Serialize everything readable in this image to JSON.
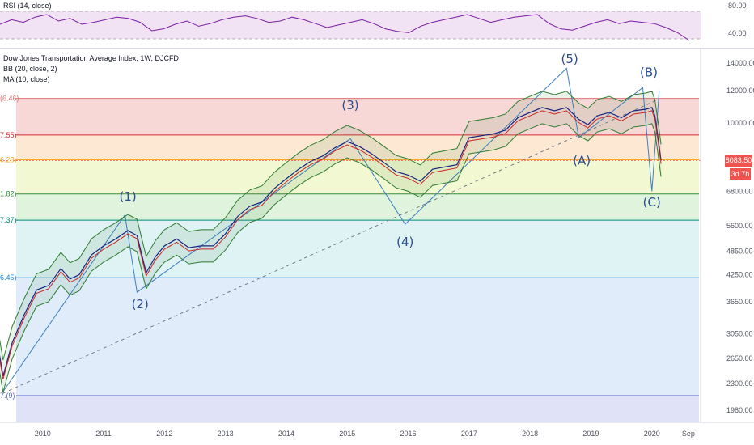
{
  "rsi": {
    "label": "RSI (14, close)",
    "y_ticks": [
      "80.00",
      "40.00"
    ],
    "color": "#7b1fa2",
    "band_color": "#e1bee7"
  },
  "chart_data": {
    "type": "line",
    "title": "Dow Jones Transportation Average Index, 1W, DJCFD",
    "indicators": [
      "BB (20, close, 2)",
      "MA (10, close)"
    ],
    "x_ticks": [
      "2010",
      "2011",
      "2012",
      "2013",
      "2014",
      "2015",
      "2016",
      "2017",
      "2018",
      "2019",
      "2020",
      "Sep"
    ],
    "y_ticks": [
      14000,
      12000,
      10000,
      8000,
      6800,
      5600,
      4850,
      4250,
      3650,
      3050,
      2650,
      2300,
      1980
    ],
    "y_scale": "log",
    "y_range": [
      1850,
      15200
    ],
    "last_price": "8083.50",
    "countdown": "3d 7h",
    "fib_labels": [
      {
        "label": "(6.46)",
        "value": 11480,
        "color": "#e57373"
      },
      {
        "label": "7.55)",
        "value": 9340,
        "color": "#d32f2f"
      },
      {
        "label": "6.28)",
        "value": 8120,
        "color": "#f9a825"
      },
      {
        "label": "1.82)",
        "value": 6700,
        "color": "#388e3c"
      },
      {
        "label": "7.37)",
        "value": 5780,
        "color": "#00897b"
      },
      {
        "label": "6.45)",
        "value": 4180,
        "color": "#1e88e5"
      },
      {
        "label": "7.(9)",
        "value": 2150,
        "color": "#5c6bc0"
      }
    ],
    "wave_labels": [
      {
        "label": "(1)",
        "x": 2011.4,
        "y": 6450
      },
      {
        "label": "(2)",
        "x": 2011.6,
        "y": 3520
      },
      {
        "label": "(3)",
        "x": 2015.05,
        "y": 10800
      },
      {
        "label": "(4)",
        "x": 2015.95,
        "y": 5000
      },
      {
        "label": "(5)",
        "x": 2018.65,
        "y": 14000
      },
      {
        "label": "(A)",
        "x": 2018.85,
        "y": 7900
      },
      {
        "label": "(B)",
        "x": 2019.95,
        "y": 13000
      },
      {
        "label": "(C)",
        "x": 2020.0,
        "y": 6250
      }
    ],
    "price_series": {
      "name": "",
      "x": [
        2009.25,
        2009.35,
        2009.5,
        2009.7,
        2009.9,
        2010.1,
        2010.3,
        2010.45,
        2010.6,
        2010.8,
        2011.0,
        2011.2,
        2011.4,
        2011.55,
        2011.7,
        2011.85,
        2012.0,
        2012.2,
        2012.4,
        2012.6,
        2012.8,
        2013.0,
        2013.2,
        2013.4,
        2013.6,
        2013.8,
        2014.0,
        2014.2,
        2014.4,
        2014.6,
        2014.8,
        2015.0,
        2015.2,
        2015.4,
        2015.6,
        2015.8,
        2016.0,
        2016.2,
        2016.4,
        2016.6,
        2016.8,
        2017.0,
        2017.2,
        2017.4,
        2017.6,
        2017.8,
        2018.0,
        2018.2,
        2018.4,
        2018.6,
        2018.8,
        2018.95,
        2019.1,
        2019.3,
        2019.5,
        2019.7,
        2019.9,
        2020.0,
        2020.05,
        2020.1,
        2020.15
      ],
      "y": [
        2950,
        2400,
        2900,
        3400,
        3900,
        4000,
        4400,
        4150,
        4250,
        4750,
        5000,
        5200,
        5450,
        5300,
        4300,
        4700,
        5000,
        5200,
        4950,
        5000,
        5000,
        5350,
        5900,
        6250,
        6400,
        6900,
        7300,
        7700,
        8050,
        8300,
        8700,
        9000,
        8750,
        8400,
        8000,
        7600,
        7450,
        7200,
        7700,
        7800,
        7900,
        9200,
        9300,
        9400,
        9600,
        10300,
        10600,
        10900,
        10700,
        10900,
        10200,
        9900,
        10400,
        10600,
        10300,
        10700,
        10800,
        10900,
        10400,
        9200,
        8083
      ]
    },
    "rsi_values": [
      55,
      62,
      58,
      66,
      70,
      60,
      64,
      55,
      58,
      62,
      66,
      64,
      58,
      45,
      48,
      55,
      60,
      52,
      56,
      62,
      66,
      68,
      64,
      58,
      60,
      66,
      62,
      56,
      50,
      54,
      58,
      62,
      56,
      48,
      44,
      42,
      52,
      58,
      62,
      66,
      70,
      64,
      58,
      62,
      66,
      68,
      70,
      56,
      48,
      46,
      52,
      58,
      62,
      56,
      60,
      58,
      56,
      50,
      42,
      30
    ]
  }
}
